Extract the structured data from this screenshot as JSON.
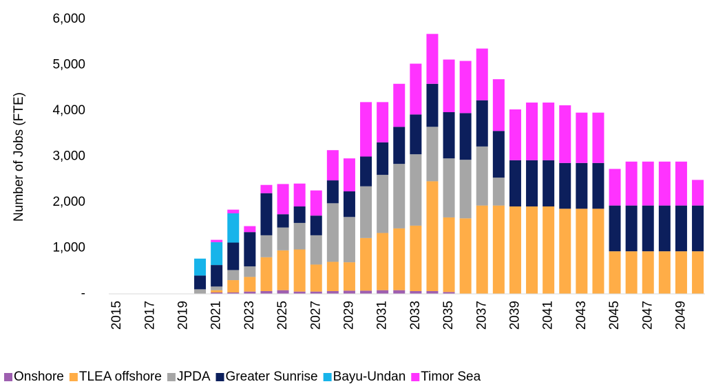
{
  "chart_data": {
    "type": "stacked_bar",
    "y_axis_label": "Number of Jobs (FTE)",
    "categories": [
      "2015",
      null,
      "2017",
      null,
      "2019",
      null,
      "2021",
      null,
      "2023",
      null,
      "2025",
      null,
      "2027",
      null,
      "2029",
      null,
      "2031",
      null,
      "2033",
      null,
      "2035",
      null,
      "2037",
      null,
      "2039",
      null,
      "2041",
      null,
      "2043",
      null,
      "2045",
      null,
      "2047",
      null,
      "2049",
      null
    ],
    "ylim": [
      0,
      6000
    ],
    "yticks": [
      {
        "value": 0,
        "label": "-"
      },
      {
        "value": 1000,
        "label": "1,000"
      },
      {
        "value": 2000,
        "label": "2,000"
      },
      {
        "value": 3000,
        "label": "3,000"
      },
      {
        "value": 4000,
        "label": "4,000"
      },
      {
        "value": 5000,
        "label": "5,000"
      },
      {
        "value": 6000,
        "label": "6,000"
      }
    ],
    "legend": "bottom",
    "series": [
      {
        "name": "Onshore",
        "color": "#9e5fb0",
        "values": [
          0,
          0,
          0,
          0,
          0,
          0,
          30,
          30,
          50,
          60,
          80,
          50,
          50,
          60,
          70,
          70,
          80,
          80,
          60,
          60,
          40,
          0,
          0,
          0,
          0,
          0,
          0,
          0,
          0,
          0,
          0,
          0,
          0,
          0,
          0,
          0
        ]
      },
      {
        "name": "TLEA offshore",
        "color": "#ffad47",
        "values": [
          0,
          0,
          0,
          0,
          0,
          0,
          50,
          270,
          320,
          740,
          870,
          920,
          590,
          640,
          620,
          1150,
          1250,
          1350,
          1430,
          2400,
          1630,
          1650,
          1930,
          1930,
          1910,
          1910,
          1910,
          1860,
          1860,
          1860,
          930,
          930,
          930,
          930,
          930,
          930
        ]
      },
      {
        "name": "JPDA",
        "color": "#a6a6a6",
        "values": [
          0,
          0,
          0,
          0,
          0,
          100,
          80,
          220,
          230,
          480,
          500,
          580,
          640,
          1280,
          990,
          1130,
          1270,
          1410,
          1560,
          1190,
          1290,
          1280,
          1290,
          610,
          0,
          0,
          0,
          0,
          0,
          0,
          0,
          0,
          0,
          0,
          0,
          0
        ]
      },
      {
        "name": "Greater Sunrise",
        "color": "#0c1f5c",
        "values": [
          0,
          0,
          0,
          0,
          0,
          300,
          470,
          600,
          750,
          920,
          290,
          360,
          430,
          500,
          560,
          650,
          710,
          810,
          870,
          940,
          1010,
          1020,
          1010,
          1020,
          1010,
          1010,
          1010,
          1000,
          1000,
          1000,
          1000,
          1000,
          1000,
          1000,
          1000,
          1000
        ]
      },
      {
        "name": "Bayu-Undan",
        "color": "#17b4ea",
        "values": [
          0,
          0,
          0,
          0,
          0,
          370,
          500,
          640,
          0,
          0,
          0,
          0,
          0,
          0,
          0,
          0,
          0,
          0,
          0,
          0,
          0,
          0,
          0,
          0,
          0,
          0,
          0,
          0,
          0,
          0,
          0,
          0,
          0,
          0,
          0,
          0
        ]
      },
      {
        "name": "Timor Sea",
        "color": "#ff33ff",
        "values": [
          0,
          0,
          0,
          0,
          0,
          0,
          50,
          80,
          130,
          180,
          660,
          500,
          550,
          660,
          720,
          1190,
          880,
          940,
          1110,
          1090,
          1150,
          1140,
          1130,
          1130,
          1110,
          1260,
          1260,
          1260,
          1100,
          1100,
          800,
          960,
          960,
          960,
          960,
          560
        ]
      }
    ]
  }
}
